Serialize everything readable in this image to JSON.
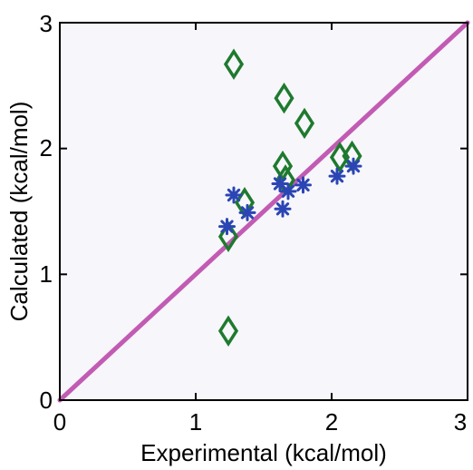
{
  "chart_data": {
    "type": "scatter",
    "xlabel": "Experimental (kcal/mol)",
    "ylabel": "Calculated (kcal/mol)",
    "xlim": [
      0,
      3
    ],
    "ylim": [
      0,
      3
    ],
    "xticks": [
      "0",
      "1",
      "2",
      "3"
    ],
    "yticks": [
      "0",
      "1",
      "2",
      "3"
    ],
    "grid": false,
    "legend": "none",
    "reference_line": {
      "from": [
        0,
        0
      ],
      "to": [
        3,
        3
      ],
      "color": "#c25bb4"
    },
    "series": [
      {
        "marker": "diamond",
        "color": "#1e7a2e",
        "points": [
          [
            1.28,
            2.67
          ],
          [
            1.65,
            2.4
          ],
          [
            1.8,
            2.2
          ],
          [
            1.64,
            1.86
          ],
          [
            1.66,
            1.75
          ],
          [
            2.06,
            1.93
          ],
          [
            2.15,
            1.94
          ],
          [
            1.36,
            1.57
          ],
          [
            1.24,
            1.3
          ],
          [
            1.24,
            0.55
          ]
        ]
      },
      {
        "marker": "asterisk",
        "color": "#2b45b5",
        "points": [
          [
            1.28,
            1.63
          ],
          [
            1.38,
            1.49
          ],
          [
            1.23,
            1.38
          ],
          [
            1.62,
            1.72
          ],
          [
            1.68,
            1.66
          ],
          [
            1.64,
            1.52
          ],
          [
            1.79,
            1.71
          ],
          [
            2.04,
            1.78
          ],
          [
            2.16,
            1.86
          ]
        ]
      }
    ]
  }
}
